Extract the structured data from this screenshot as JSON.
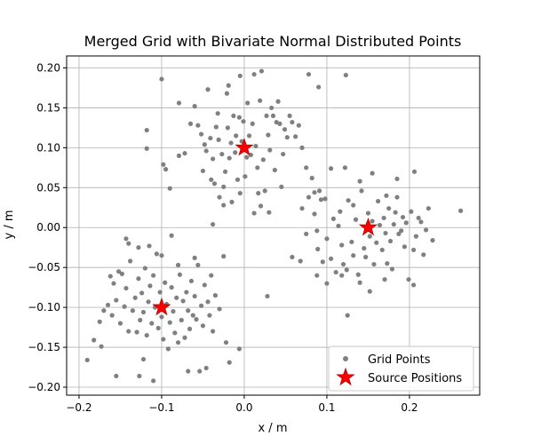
{
  "chart_data": {
    "type": "scatter",
    "title": "Merged Grid with Bivariate Normal Distributed Points",
    "xlabel": "x / m",
    "ylabel": "y / m",
    "xlim": [
      -0.215,
      0.285
    ],
    "ylim": [
      -0.21,
      0.215
    ],
    "x_ticks": [
      -0.2,
      -0.1,
      0.0,
      0.1,
      0.2
    ],
    "x_tick_labels": [
      "−0.2",
      "−0.1",
      "0.0",
      "0.1",
      "0.2"
    ],
    "y_ticks": [
      -0.2,
      -0.15,
      -0.1,
      -0.05,
      0.0,
      0.05,
      0.1,
      0.15,
      0.2
    ],
    "y_tick_labels": [
      "−0.20",
      "−0.15",
      "−0.10",
      "−0.05",
      "0.00",
      "0.05",
      "0.10",
      "0.15",
      "0.20"
    ],
    "grid": true,
    "legend_position": "lower-right",
    "colors": {
      "points": "#808080",
      "sources": "#ff0000",
      "source_edge": "#b00000"
    },
    "series": [
      {
        "name": "Grid Points",
        "marker": "circle",
        "points": [
          [
            -0.1,
            0.186
          ],
          [
            -0.118,
            0.122
          ],
          [
            -0.118,
            0.099
          ],
          [
            -0.095,
            0.073
          ],
          [
            -0.098,
            0.079
          ],
          [
            -0.09,
            0.049
          ],
          [
            -0.079,
            0.09
          ],
          [
            -0.079,
            0.156
          ],
          [
            -0.072,
            0.093
          ],
          [
            -0.065,
            0.13
          ],
          [
            -0.06,
            0.152
          ],
          [
            -0.056,
            0.128
          ],
          [
            -0.052,
            0.117
          ],
          [
            -0.05,
            0.071
          ],
          [
            -0.048,
            0.104
          ],
          [
            -0.046,
            0.096
          ],
          [
            -0.044,
            0.173
          ],
          [
            -0.041,
            0.112
          ],
          [
            -0.04,
            0.06
          ],
          [
            -0.038,
            0.086
          ],
          [
            -0.036,
            0.055
          ],
          [
            -0.034,
            0.126
          ],
          [
            -0.032,
            0.143
          ],
          [
            -0.031,
            0.11
          ],
          [
            -0.03,
            0.038
          ],
          [
            -0.027,
            0.092
          ],
          [
            -0.025,
            0.051
          ],
          [
            -0.023,
            0.07
          ],
          [
            -0.021,
            0.168
          ],
          [
            -0.02,
            0.125
          ],
          [
            -0.019,
            0.178
          ],
          [
            -0.018,
            0.087
          ],
          [
            -0.016,
            0.106
          ],
          [
            -0.015,
            0.032
          ],
          [
            -0.013,
            0.14
          ],
          [
            -0.011,
            0.094
          ],
          [
            -0.01,
            0.115
          ],
          [
            -0.008,
            0.06
          ],
          [
            -0.006,
            0.138
          ],
          [
            -0.005,
            0.043
          ],
          [
            -0.003,
            0.108
          ],
          [
            -0.001,
            0.133
          ],
          [
            0.001,
            0.064
          ],
          [
            0.003,
            0.088
          ],
          [
            0.004,
            0.156
          ],
          [
            0.006,
            0.115
          ],
          [
            0.008,
            0.091
          ],
          [
            0.01,
            0.13
          ],
          [
            0.012,
            0.192
          ],
          [
            0.014,
            0.102
          ],
          [
            0.016,
            0.075
          ],
          [
            0.017,
            0.043
          ],
          [
            0.019,
            0.159
          ],
          [
            0.021,
            0.196
          ],
          [
            0.023,
            0.085
          ],
          [
            0.025,
            0.046
          ],
          [
            0.027,
            0.14
          ],
          [
            0.029,
            0.116
          ],
          [
            0.031,
            0.097
          ],
          [
            0.033,
            0.15
          ],
          [
            0.035,
            0.14
          ],
          [
            0.037,
            0.072
          ],
          [
            0.039,
            0.132
          ],
          [
            0.041,
            0.158
          ],
          [
            0.043,
            0.13
          ],
          [
            0.045,
            0.051
          ],
          [
            0.047,
            0.092
          ],
          [
            0.049,
            0.123
          ],
          [
            0.052,
            0.113
          ],
          [
            0.055,
            0.14
          ],
          [
            0.058,
            0.132
          ],
          [
            0.062,
            0.114
          ],
          [
            0.066,
            0.128
          ],
          [
            0.07,
            0.1
          ],
          [
            0.075,
            0.075
          ],
          [
            0.082,
            0.062
          ],
          [
            0.078,
            0.192
          ],
          [
            0.09,
            0.176
          ],
          [
            0.02,
            0.027
          ],
          [
            0.012,
            0.018
          ],
          [
            0.03,
            0.019
          ],
          [
            -0.038,
            0.004
          ],
          [
            -0.025,
            0.028
          ],
          [
            -0.005,
            0.19
          ],
          [
            0.123,
            0.191
          ],
          [
            0.028,
            -0.086
          ],
          [
            0.15,
            0.005
          ],
          [
            0.132,
            0.028
          ],
          [
            0.105,
            0.074
          ],
          [
            0.122,
            0.075
          ],
          [
            0.14,
            0.058
          ],
          [
            0.108,
            0.011
          ],
          [
            0.098,
            0.036
          ],
          [
            0.093,
            0.035
          ],
          [
            0.085,
            0.044
          ],
          [
            0.078,
            0.038
          ],
          [
            0.07,
            0.024
          ],
          [
            0.085,
            0.017
          ],
          [
            0.091,
            0.046
          ],
          [
            0.088,
            -0.004
          ],
          [
            0.089,
            -0.027
          ],
          [
            0.095,
            -0.043
          ],
          [
            0.1,
            -0.014
          ],
          [
            0.105,
            -0.039
          ],
          [
            0.111,
            -0.056
          ],
          [
            0.114,
            0.002
          ],
          [
            0.116,
            0.02
          ],
          [
            0.118,
            -0.022
          ],
          [
            0.12,
            -0.046
          ],
          [
            0.124,
            -0.053
          ],
          [
            0.126,
            0.034
          ],
          [
            0.13,
            -0.018
          ],
          [
            0.132,
            -0.035
          ],
          [
            0.135,
            0.01
          ],
          [
            0.138,
            -0.059
          ],
          [
            0.14,
            -0.069
          ],
          [
            0.142,
            0.046
          ],
          [
            0.145,
            -0.026
          ],
          [
            0.147,
            -0.037
          ],
          [
            0.15,
            0.018
          ],
          [
            0.152,
            -0.011
          ],
          [
            0.155,
            0.008
          ],
          [
            0.157,
            -0.046
          ],
          [
            0.16,
            -0.019
          ],
          [
            0.162,
            0.033
          ],
          [
            0.164,
            0.003
          ],
          [
            0.167,
            -0.028
          ],
          [
            0.169,
            0.012
          ],
          [
            0.171,
            -0.007
          ],
          [
            0.173,
            -0.045
          ],
          [
            0.175,
            0.024
          ],
          [
            0.177,
            -0.017
          ],
          [
            0.179,
            -0.052
          ],
          [
            0.181,
            0.004
          ],
          [
            0.183,
            0.019
          ],
          [
            0.185,
            0.038
          ],
          [
            0.187,
            -0.008
          ],
          [
            0.19,
            -0.004
          ],
          [
            0.192,
            0.013
          ],
          [
            0.194,
            -0.024
          ],
          [
            0.196,
            0.006
          ],
          [
            0.199,
            -0.065
          ],
          [
            0.202,
            0.02
          ],
          [
            0.205,
            -0.028
          ],
          [
            0.208,
            -0.011
          ],
          [
            0.211,
            0.012
          ],
          [
            0.214,
            0.007
          ],
          [
            0.217,
            -0.034
          ],
          [
            0.22,
            -0.003
          ],
          [
            0.223,
            0.024
          ],
          [
            0.228,
            -0.016
          ],
          [
            0.206,
            0.07
          ],
          [
            0.185,
            0.061
          ],
          [
            0.155,
            0.068
          ],
          [
            0.172,
            0.04
          ],
          [
            0.262,
            0.021
          ],
          [
            0.125,
            -0.11
          ],
          [
            0.152,
            -0.08
          ],
          [
            0.17,
            -0.065
          ],
          [
            0.205,
            -0.072
          ],
          [
            0.1,
            -0.07
          ],
          [
            0.058,
            -0.037
          ],
          [
            0.068,
            -0.042
          ],
          [
            0.075,
            -0.008
          ],
          [
            0.088,
            -0.06
          ],
          [
            0.118,
            -0.06
          ],
          [
            -0.19,
            -0.166
          ],
          [
            -0.182,
            -0.141
          ],
          [
            -0.173,
            -0.149
          ],
          [
            -0.17,
            -0.104
          ],
          [
            -0.165,
            -0.097
          ],
          [
            -0.162,
            -0.061
          ],
          [
            -0.16,
            -0.11
          ],
          [
            -0.158,
            -0.07
          ],
          [
            -0.155,
            -0.091
          ],
          [
            -0.152,
            -0.055
          ],
          [
            -0.15,
            -0.12
          ],
          [
            -0.148,
            -0.058
          ],
          [
            -0.145,
            -0.099
          ],
          [
            -0.143,
            -0.076
          ],
          [
            -0.14,
            -0.13
          ],
          [
            -0.138,
            -0.042
          ],
          [
            -0.135,
            -0.104
          ],
          [
            -0.132,
            -0.088
          ],
          [
            -0.13,
            -0.131
          ],
          [
            -0.128,
            -0.064
          ],
          [
            -0.126,
            -0.116
          ],
          [
            -0.124,
            -0.082
          ],
          [
            -0.122,
            -0.106
          ],
          [
            -0.12,
            -0.051
          ],
          [
            -0.118,
            -0.135
          ],
          [
            -0.116,
            -0.093
          ],
          [
            -0.114,
            -0.073
          ],
          [
            -0.112,
            -0.12
          ],
          [
            -0.11,
            -0.06
          ],
          [
            -0.108,
            -0.1
          ],
          [
            -0.106,
            -0.033
          ],
          [
            -0.104,
            -0.126
          ],
          [
            -0.102,
            -0.081
          ],
          [
            -0.1,
            -0.112
          ],
          [
            -0.098,
            -0.14
          ],
          [
            -0.096,
            -0.069
          ],
          [
            -0.094,
            -0.096
          ],
          [
            -0.092,
            -0.152
          ],
          [
            -0.09,
            -0.119
          ],
          [
            -0.088,
            -0.075
          ],
          [
            -0.086,
            -0.105
          ],
          [
            -0.084,
            -0.132
          ],
          [
            -0.082,
            -0.088
          ],
          [
            -0.08,
            -0.144
          ],
          [
            -0.078,
            -0.059
          ],
          [
            -0.076,
            -0.116
          ],
          [
            -0.074,
            -0.092
          ],
          [
            -0.072,
            -0.138
          ],
          [
            -0.07,
            -0.081
          ],
          [
            -0.068,
            -0.104
          ],
          [
            -0.066,
            -0.127
          ],
          [
            -0.064,
            -0.067
          ],
          [
            -0.062,
            -0.11
          ],
          [
            -0.06,
            -0.086
          ],
          [
            -0.058,
            -0.115
          ],
          [
            -0.056,
            -0.047
          ],
          [
            -0.054,
            -0.18
          ],
          [
            -0.052,
            -0.098
          ],
          [
            -0.05,
            -0.123
          ],
          [
            -0.048,
            -0.072
          ],
          [
            -0.046,
            -0.176
          ],
          [
            -0.044,
            -0.093
          ],
          [
            -0.042,
            -0.11
          ],
          [
            -0.04,
            -0.06
          ],
          [
            -0.038,
            -0.13
          ],
          [
            -0.035,
            -0.085
          ],
          [
            -0.03,
            -0.102
          ],
          [
            -0.025,
            -0.036
          ],
          [
            -0.022,
            -0.144
          ],
          [
            -0.018,
            -0.169
          ],
          [
            -0.006,
            -0.152
          ],
          [
            -0.155,
            -0.186
          ],
          [
            -0.127,
            -0.186
          ],
          [
            -0.122,
            -0.165
          ],
          [
            -0.11,
            -0.192
          ],
          [
            -0.143,
            -0.014
          ],
          [
            -0.128,
            -0.025
          ],
          [
            -0.115,
            -0.023
          ],
          [
            -0.1,
            -0.035
          ],
          [
            -0.088,
            -0.01
          ],
          [
            -0.068,
            -0.18
          ],
          [
            -0.08,
            -0.047
          ],
          [
            -0.06,
            -0.038
          ],
          [
            -0.14,
            -0.02
          ],
          [
            -0.175,
            -0.118
          ]
        ]
      },
      {
        "name": "Source Positions",
        "marker": "star",
        "points": [
          [
            0.0,
            0.1
          ],
          [
            0.15,
            0.0
          ],
          [
            -0.1,
            -0.1
          ]
        ]
      }
    ]
  }
}
